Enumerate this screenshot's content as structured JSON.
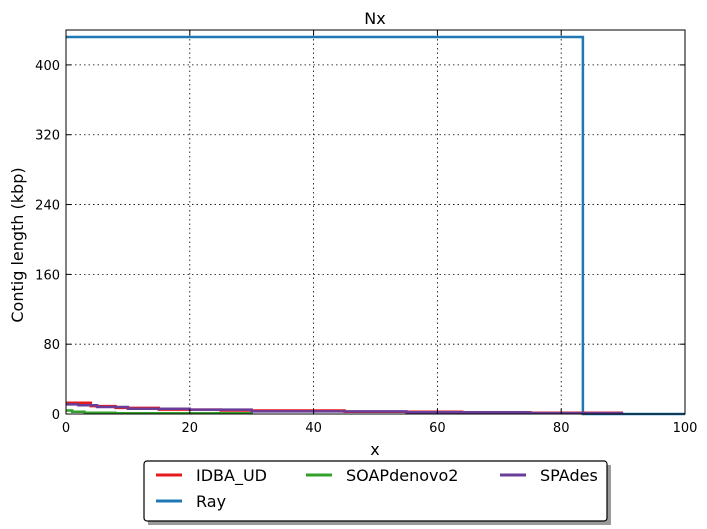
{
  "chart_data": {
    "type": "line",
    "title": "Nx",
    "xlabel": "x",
    "ylabel": "Contig length  (kbp)",
    "xlim": [
      0,
      100
    ],
    "ylim": [
      0,
      440
    ],
    "xticks": [
      0,
      20,
      40,
      60,
      80,
      100
    ],
    "yticks": [
      0,
      80,
      160,
      240,
      320,
      400
    ],
    "grid": true,
    "legend_position": "bottom-center-outside",
    "legend_columns": 3,
    "series": [
      {
        "name": "IDBA_UD",
        "color": "#e41a1c",
        "x": [
          0,
          4,
          4,
          8,
          8,
          15,
          15,
          25,
          25,
          45,
          45,
          64,
          64,
          90
        ],
        "y": [
          13,
          13,
          9,
          9,
          7,
          7,
          5,
          5,
          4,
          4,
          2.5,
          2.5,
          1.5,
          1.5
        ]
      },
      {
        "name": "Ray",
        "color": "#1f78b4",
        "x": [
          0,
          83.5,
          83.5,
          100
        ],
        "y": [
          432,
          432,
          0,
          0
        ]
      },
      {
        "name": "SOAPdenovo2",
        "color": "#33a02c",
        "x": [
          0,
          1,
          1,
          3,
          3,
          8,
          8,
          30,
          30
        ],
        "y": [
          4,
          4,
          2.5,
          2.5,
          1.5,
          1.5,
          0.8,
          0.8,
          0.5
        ]
      },
      {
        "name": "SPAdes",
        "color": "#6a3d9a",
        "x": [
          0,
          2,
          2,
          5,
          5,
          10,
          10,
          20,
          20,
          30,
          30,
          55,
          55,
          75,
          75,
          90
        ],
        "y": [
          11,
          11,
          10,
          10,
          8,
          8,
          6,
          6,
          5,
          5,
          3,
          3,
          2,
          2,
          1,
          1
        ]
      }
    ],
    "legend_order": [
      "IDBA_UD",
      "Ray",
      "SOAPdenovo2",
      "SPAdes"
    ]
  }
}
